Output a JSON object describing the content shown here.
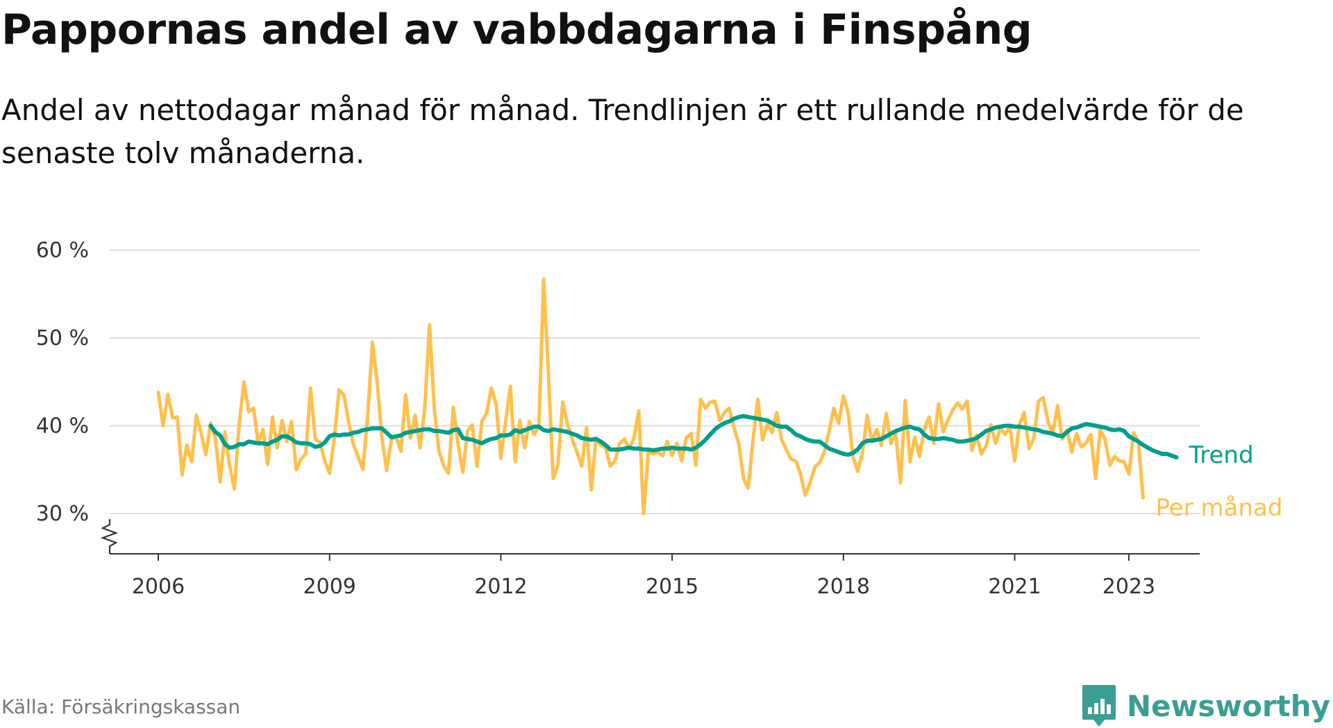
{
  "title": "Pappornas andel av vabbdagarna i Finspång",
  "subtitle": "Andel av nettodagar månad för månad. Trendlinjen är ett rullande medelvärde för de senaste tolv månaderna.",
  "source": "Källa: Försäkringskassan",
  "brand": "Newsworthy",
  "colors": {
    "monthly": "#ffc04d",
    "trend": "#009e8c",
    "grid": "#dddddd",
    "axis": "#333333",
    "brand": "#3a9e92"
  },
  "chart_data": {
    "type": "line",
    "title": "Pappornas andel av vabbdagarna i Finspång",
    "xlabel": "",
    "ylabel": "",
    "x_start": "2006-01",
    "y_unit": "%",
    "ylim": [
      25.5,
      61
    ],
    "yticks": [
      30,
      40,
      50,
      60
    ],
    "ytick_labels": [
      "30 %",
      "40 %",
      "50 %",
      "60 %"
    ],
    "xticks": [
      2006,
      2009,
      2012,
      2015,
      2018,
      2021,
      2023
    ],
    "xtick_labels": [
      "2006",
      "2009",
      "2012",
      "2015",
      "2018",
      "2021",
      "2023"
    ],
    "grid": "horizontal",
    "legend": "line-end labels",
    "series": [
      {
        "name": "Per månad",
        "color": "#ffc04d",
        "values": [
          43.8,
          40.0,
          43.6,
          40.9,
          41.0,
          34.4,
          37.8,
          35.9,
          41.2,
          39.2,
          36.7,
          40.3,
          38.6,
          33.6,
          39.3,
          35.4,
          32.8,
          40.2,
          45.0,
          41.6,
          42.0,
          38.0,
          39.6,
          35.6,
          41.0,
          37.5,
          40.6,
          38.2,
          40.5,
          35.0,
          36.2,
          36.8,
          44.3,
          38.5,
          38.1,
          36.0,
          34.6,
          38.6,
          44.1,
          43.5,
          40.5,
          37.9,
          36.5,
          35.0,
          41.0,
          49.5,
          45.0,
          38.6,
          34.9,
          38.5,
          38.7,
          37.1,
          43.5,
          38.6,
          41.2,
          37.5,
          42.0,
          51.5,
          42.0,
          37.1,
          35.4,
          34.6,
          42.1,
          38.0,
          34.7,
          39.4,
          40.1,
          35.4,
          40.5,
          41.4,
          44.3,
          42.5,
          36.3,
          40.5,
          44.5,
          35.9,
          40.6,
          37.5,
          40.5,
          39.0,
          40.0,
          56.7,
          46.0,
          34.0,
          35.5,
          42.7,
          40.2,
          38.5,
          37.0,
          35.4,
          39.8,
          32.7,
          38.6,
          37.8,
          37.5,
          35.4,
          36.0,
          38.0,
          38.5,
          37.4,
          38.6,
          41.7,
          30.0,
          37.0,
          36.8,
          37.0,
          36.6,
          38.2,
          36.6,
          38.0,
          36.0,
          38.7,
          39.1,
          35.5,
          43.0,
          42.0,
          42.7,
          42.8,
          40.6,
          41.5,
          42.0,
          39.8,
          38.0,
          34.0,
          32.9,
          38.4,
          43.0,
          38.4,
          40.2,
          39.2,
          41.5,
          38.4,
          37.3,
          36.2,
          36.0,
          34.5,
          32.1,
          33.5,
          35.3,
          35.8,
          37.0,
          39.4,
          42.0,
          40.3,
          43.4,
          41.5,
          36.5,
          34.8,
          36.9,
          41.2,
          38.2,
          39.6,
          37.8,
          41.4,
          38.0,
          39.1,
          33.5,
          42.9,
          35.9,
          38.7,
          36.5,
          39.6,
          41.0,
          38.0,
          42.5,
          39.3,
          40.7,
          41.8,
          42.6,
          41.9,
          42.8,
          37.2,
          38.9,
          36.8,
          37.7,
          40.1,
          38.0,
          39.7,
          39.0,
          39.8,
          36.0,
          40.2,
          41.5,
          37.4,
          38.5,
          42.8,
          43.2,
          40.5,
          39.0,
          42.3,
          38.5,
          39.5,
          37.0,
          39.1,
          37.6,
          38.0,
          39.0,
          34.0,
          39.6,
          38.4,
          35.5,
          36.5,
          36.0,
          35.9,
          34.5,
          39.2,
          38.1,
          31.8
        ]
      },
      {
        "name": "Trend",
        "color": "#009e8c",
        "start_index": 11,
        "values": [
          40.0,
          39.3,
          38.9,
          37.9,
          37.5,
          37.6,
          37.9,
          37.9,
          38.2,
          38.1,
          38.0,
          38.0,
          37.9,
          38.2,
          38.4,
          38.8,
          38.8,
          38.5,
          38.1,
          38.0,
          38.0,
          37.9,
          37.6,
          37.7,
          38.1,
          38.8,
          39.0,
          38.9,
          39.0,
          39.0,
          39.2,
          39.3,
          39.5,
          39.6,
          39.7,
          39.7,
          39.7,
          39.2,
          38.7,
          38.8,
          38.9,
          39.2,
          39.3,
          39.4,
          39.5,
          39.6,
          39.6,
          39.4,
          39.4,
          39.3,
          39.2,
          39.5,
          39.6,
          38.6,
          38.5,
          38.4,
          38.2,
          38.0,
          38.3,
          38.5,
          38.6,
          38.9,
          38.9,
          39.0,
          39.5,
          39.3,
          39.5,
          39.7,
          39.9,
          39.9,
          39.5,
          39.4,
          39.6,
          39.5,
          39.4,
          39.3,
          39.1,
          38.9,
          38.6,
          38.5,
          38.4,
          38.5,
          38.2,
          37.8,
          37.3,
          37.3,
          37.3,
          37.4,
          37.5,
          37.4,
          37.4,
          37.3,
          37.3,
          37.2,
          37.3,
          37.4,
          37.4,
          37.5,
          37.4,
          37.4,
          37.4,
          37.3,
          37.5,
          37.9,
          38.4,
          39.0,
          39.6,
          40.0,
          40.3,
          40.5,
          40.8,
          41.0,
          41.1,
          41.0,
          40.9,
          40.8,
          40.7,
          40.6,
          40.3,
          40.0,
          39.9,
          39.9,
          39.5,
          39.0,
          38.8,
          38.5,
          38.3,
          38.2,
          38.2,
          37.8,
          37.4,
          37.2,
          37.0,
          36.8,
          36.7,
          36.9,
          37.3,
          38.0,
          38.3,
          38.3,
          38.4,
          38.5,
          38.8,
          39.1,
          39.4,
          39.6,
          39.8,
          39.9,
          39.7,
          39.6,
          39.0,
          38.6,
          38.5,
          38.5,
          38.6,
          38.5,
          38.4,
          38.2,
          38.2,
          38.3,
          38.4,
          38.6,
          39.0,
          39.4,
          39.6,
          39.8,
          39.9,
          40.0,
          40.0,
          39.9,
          39.9,
          39.8,
          39.7,
          39.6,
          39.5,
          39.3,
          39.2,
          39.1,
          38.9,
          38.8,
          39.3,
          39.7,
          39.8,
          40.0,
          40.2,
          40.1,
          40.0,
          39.9,
          39.8,
          39.6,
          39.5,
          39.6,
          39.4,
          38.8,
          38.5,
          38.2,
          37.8,
          37.5,
          37.2,
          37.0,
          36.8,
          36.8,
          36.6,
          36.4
        ]
      }
    ]
  }
}
